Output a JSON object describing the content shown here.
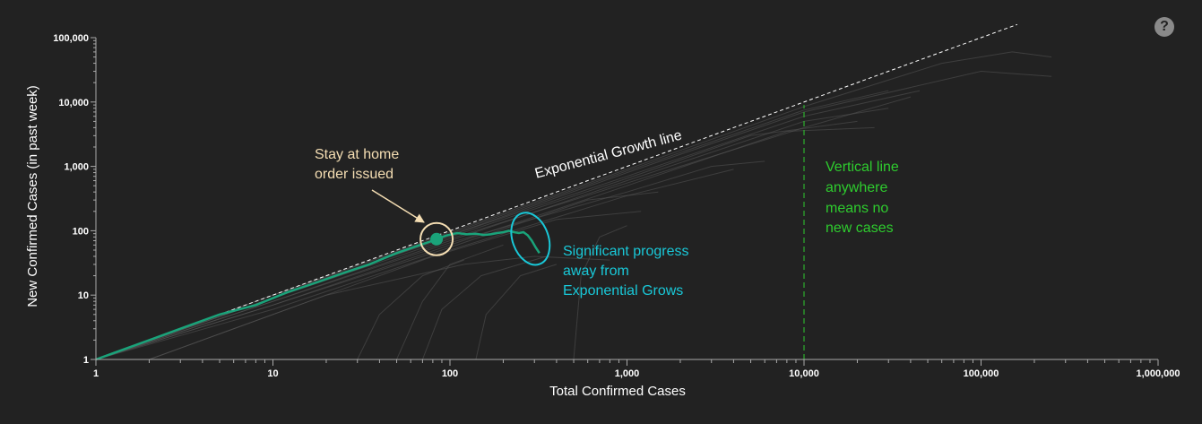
{
  "help_icon": {
    "glyph": "?",
    "icon": "question-circle-icon",
    "color": "#8a8a8a"
  },
  "chart_data": {
    "type": "line",
    "xscale": "log",
    "yscale": "log",
    "xlabel": "Total Confirmed Cases",
    "ylabel": "New Confirmed Cases (in past week)",
    "xlim": [
      1,
      1000000
    ],
    "ylim": [
      1,
      100000
    ],
    "x_ticks": [
      1,
      10,
      100,
      1000,
      10000,
      100000,
      1000000
    ],
    "x_tick_labels": [
      "1",
      "10",
      "100",
      "1,000",
      "10,000",
      "100,000",
      "1,000,000"
    ],
    "y_ticks": [
      1,
      10,
      100,
      1000,
      10000,
      100000
    ],
    "y_tick_labels": [
      "1",
      "10",
      "100",
      "1,000",
      "10,000",
      "100,000"
    ],
    "grid": false,
    "colors": {
      "background": "#222222",
      "highlight": "#1aa37a",
      "background_series": "#555555",
      "exponential_line": "#ffffff",
      "vertical_line": "#2ecc2e",
      "stay_home_circle": "#f5deb3",
      "progress_ellipse": "#19c8d8"
    },
    "highlighted_series": {
      "color": "#1aa37a",
      "points": [
        [
          1,
          1
        ],
        [
          2,
          2
        ],
        [
          3,
          3
        ],
        [
          5,
          5
        ],
        [
          8,
          7
        ],
        [
          12,
          11
        ],
        [
          18,
          16
        ],
        [
          25,
          22
        ],
        [
          35,
          30
        ],
        [
          50,
          45
        ],
        [
          65,
          58
        ],
        [
          80,
          70
        ],
        [
          84,
          74
        ],
        [
          95,
          84
        ],
        [
          110,
          92
        ],
        [
          125,
          88
        ],
        [
          140,
          90
        ],
        [
          155,
          86
        ],
        [
          170,
          88
        ],
        [
          185,
          92
        ],
        [
          200,
          95
        ],
        [
          215,
          100
        ],
        [
          230,
          95
        ],
        [
          245,
          92
        ],
        [
          260,
          95
        ],
        [
          275,
          85
        ],
        [
          290,
          70
        ],
        [
          305,
          55
        ],
        [
          320,
          45
        ]
      ]
    },
    "background_series": [
      {
        "points": [
          [
            1,
            1
          ],
          [
            10,
            10
          ],
          [
            100,
            95
          ],
          [
            1000,
            900
          ],
          [
            10000,
            8500
          ],
          [
            60000,
            40000
          ],
          [
            150000,
            60000
          ],
          [
            250000,
            50000
          ]
        ]
      },
      {
        "points": [
          [
            1,
            1
          ],
          [
            10,
            9
          ],
          [
            100,
            85
          ],
          [
            1000,
            700
          ],
          [
            10000,
            6000
          ],
          [
            45000,
            15000
          ]
        ]
      },
      {
        "points": [
          [
            1,
            1
          ],
          [
            10,
            8
          ],
          [
            100,
            70
          ],
          [
            1000,
            600
          ],
          [
            10000,
            5000
          ],
          [
            30000,
            8000
          ]
        ]
      },
      {
        "points": [
          [
            1,
            1
          ],
          [
            10,
            10
          ],
          [
            100,
            80
          ],
          [
            1000,
            650
          ],
          [
            5000,
            3000
          ],
          [
            20000,
            5000
          ]
        ]
      },
      {
        "points": [
          [
            1,
            1
          ],
          [
            10,
            7
          ],
          [
            100,
            60
          ],
          [
            1000,
            500
          ],
          [
            8000,
            3500
          ],
          [
            25000,
            4000
          ]
        ]
      },
      {
        "points": [
          [
            1,
            1
          ],
          [
            10,
            9
          ],
          [
            100,
            75
          ],
          [
            1000,
            550
          ],
          [
            10000,
            4000
          ],
          [
            40000,
            12000
          ]
        ]
      },
      {
        "points": [
          [
            1,
            1
          ],
          [
            10,
            8
          ],
          [
            100,
            65
          ],
          [
            1000,
            400
          ],
          [
            3000,
            1000
          ],
          [
            6000,
            1200
          ]
        ]
      },
      {
        "points": [
          [
            1,
            1
          ],
          [
            10,
            6
          ],
          [
            100,
            50
          ],
          [
            1000,
            350
          ],
          [
            4000,
            900
          ]
        ]
      },
      {
        "points": [
          [
            1,
            1
          ],
          [
            10,
            7
          ],
          [
            100,
            55
          ],
          [
            600,
            300
          ],
          [
            1500,
            400
          ]
        ]
      },
      {
        "points": [
          [
            2,
            1
          ],
          [
            10,
            5
          ],
          [
            80,
            40
          ],
          [
            400,
            150
          ],
          [
            1200,
            200
          ]
        ]
      },
      {
        "points": [
          [
            2,
            1
          ],
          [
            20,
            10
          ],
          [
            120,
            30
          ],
          [
            300,
            40
          ],
          [
            800,
            35
          ]
        ]
      },
      {
        "points": [
          [
            1,
            1
          ],
          [
            10,
            9
          ],
          [
            100,
            85
          ],
          [
            1000,
            800
          ],
          [
            10000,
            7000
          ],
          [
            100000,
            30000
          ],
          [
            250000,
            25000
          ]
        ]
      },
      {
        "points": [
          [
            1,
            1
          ],
          [
            10,
            10
          ],
          [
            100,
            90
          ],
          [
            1000,
            850
          ],
          [
            10000,
            7500
          ],
          [
            30000,
            15000
          ]
        ]
      },
      {
        "points": [
          [
            50,
            1
          ],
          [
            70,
            8
          ],
          [
            100,
            30
          ],
          [
            200,
            60
          ]
        ]
      },
      {
        "points": [
          [
            140,
            1
          ],
          [
            160,
            5
          ],
          [
            250,
            20
          ],
          [
            400,
            30
          ]
        ]
      },
      {
        "points": [
          [
            70,
            1
          ],
          [
            90,
            6
          ],
          [
            150,
            20
          ],
          [
            350,
            40
          ]
        ]
      },
      {
        "points": [
          [
            30,
            1
          ],
          [
            40,
            5
          ],
          [
            70,
            20
          ],
          [
            120,
            35
          ]
        ]
      },
      {
        "points": [
          [
            500,
            1
          ],
          [
            550,
            20
          ],
          [
            700,
            80
          ],
          [
            1000,
            120
          ]
        ]
      }
    ],
    "exponential_growth_line": {
      "label": "Exponential Growth line",
      "from": [
        1,
        1
      ],
      "to": [
        160000,
        160000
      ]
    },
    "vertical_reference_line": {
      "x": 10000,
      "y_range": [
        1,
        9000
      ],
      "label_lines": [
        "Vertical line",
        "anywhere",
        "means no",
        "new cases"
      ]
    },
    "annotations": {
      "stay_home": {
        "lines": [
          "Stay at home",
          "order issued"
        ],
        "marker_at": [
          84,
          74
        ]
      },
      "progress": {
        "lines": [
          "Significant progress",
          "away from",
          "Exponential Grows"
        ],
        "ellipse_center": [
          285,
          75
        ]
      }
    }
  }
}
